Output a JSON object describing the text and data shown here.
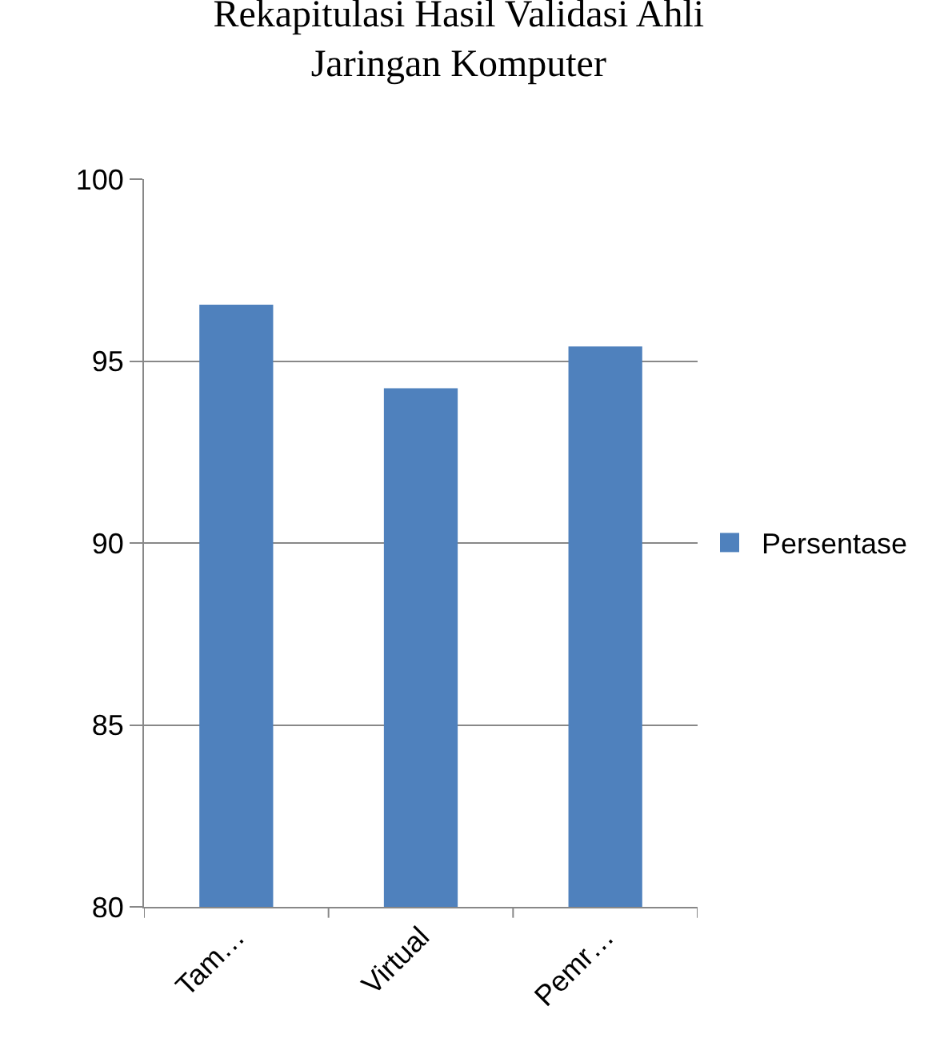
{
  "chart_data": {
    "type": "bar",
    "title": "Rekapitulasi Hasil Validasi Ahli Jaringan Komputer",
    "categories": [
      "Tam…",
      "Virtual",
      "Pemr…"
    ],
    "series": [
      {
        "name": "Persentase",
        "color": "#4f81bd",
        "values": [
          96.55,
          94.25,
          95.4
        ]
      }
    ],
    "ylim": [
      80,
      100
    ],
    "yticks": [
      80,
      85,
      90,
      95,
      100
    ],
    "grid": "y",
    "legend": "right"
  }
}
